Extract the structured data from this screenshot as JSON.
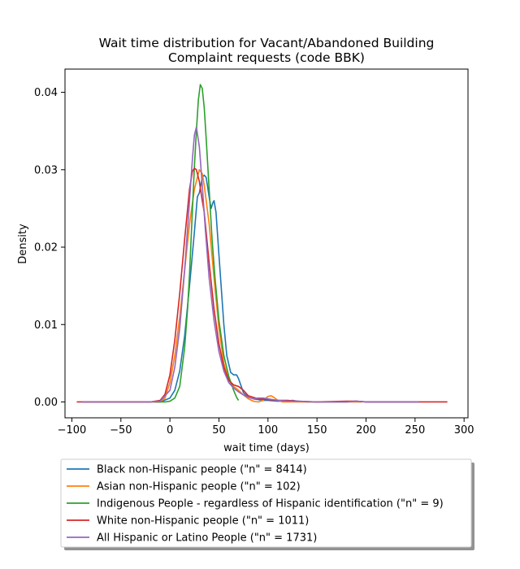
{
  "chart_data": {
    "type": "line",
    "title_lines": [
      "Wait time distribution  for Vacant/Abandoned Building",
      "Complaint requests (code BBK)"
    ],
    "xlabel": "wait time (days)",
    "ylabel": "Density",
    "xlim": [
      -107,
      304
    ],
    "ylim": [
      -0.00205,
      0.043
    ],
    "xticks": [
      -100,
      -50,
      0,
      50,
      100,
      150,
      200,
      250,
      300
    ],
    "xtick_labels": [
      "−100",
      "−50",
      "0",
      "50",
      "100",
      "150",
      "200",
      "250",
      "300"
    ],
    "yticks": [
      0.0,
      0.01,
      0.02,
      0.03,
      0.04
    ],
    "ytick_labels": [
      "0.00",
      "0.01",
      "0.02",
      "0.03",
      "0.04"
    ],
    "grid": false,
    "legend_position": "below-plot",
    "series": [
      {
        "name": "Black non-Hispanic people (\"n\" = 8414)",
        "color": "#1f77b4",
        "points": [
          [
            -90,
            0
          ],
          [
            -40,
            0
          ],
          [
            -10,
            0
          ],
          [
            0,
            0.0005
          ],
          [
            5,
            0.0015
          ],
          [
            10,
            0.004
          ],
          [
            15,
            0.0085
          ],
          [
            20,
            0.015
          ],
          [
            25,
            0.022
          ],
          [
            28,
            0.0265
          ],
          [
            30,
            0.027
          ],
          [
            33,
            0.029
          ],
          [
            35,
            0.0293
          ],
          [
            37,
            0.029
          ],
          [
            40,
            0.0265
          ],
          [
            42,
            0.025
          ],
          [
            44,
            0.0258
          ],
          [
            45,
            0.026
          ],
          [
            47,
            0.0245
          ],
          [
            50,
            0.019
          ],
          [
            55,
            0.01
          ],
          [
            58,
            0.006
          ],
          [
            62,
            0.0038
          ],
          [
            65,
            0.0035
          ],
          [
            68,
            0.0035
          ],
          [
            70,
            0.003
          ],
          [
            75,
            0.0012
          ],
          [
            80,
            0.0006
          ],
          [
            85,
            0.0004
          ],
          [
            90,
            0.0003
          ],
          [
            95,
            0.0002
          ],
          [
            100,
            0.0002
          ],
          [
            110,
            0.0001
          ],
          [
            120,
            0.0001
          ],
          [
            125,
            0.0002
          ],
          [
            130,
            0.0001
          ],
          [
            140,
            0
          ],
          [
            160,
            0
          ],
          [
            180,
            0
          ],
          [
            190,
            0.0001
          ],
          [
            200,
            0
          ],
          [
            250,
            0
          ],
          [
            254,
            0
          ]
        ]
      },
      {
        "name": "Asian non-Hispanic people (\"n\" = 102)",
        "color": "#ff7f0e",
        "points": [
          [
            -88,
            0
          ],
          [
            -40,
            0
          ],
          [
            -20,
            0
          ],
          [
            -10,
            0
          ],
          [
            -5,
            0.0005
          ],
          [
            0,
            0.0025
          ],
          [
            5,
            0.006
          ],
          [
            10,
            0.011
          ],
          [
            15,
            0.017
          ],
          [
            20,
            0.023
          ],
          [
            25,
            0.0275
          ],
          [
            30,
            0.03
          ],
          [
            33,
            0.0295
          ],
          [
            35,
            0.028
          ],
          [
            40,
            0.023
          ],
          [
            45,
            0.016
          ],
          [
            50,
            0.0095
          ],
          [
            55,
            0.005
          ],
          [
            60,
            0.0028
          ],
          [
            65,
            0.002
          ],
          [
            70,
            0.0015
          ],
          [
            75,
            0.0009
          ],
          [
            80,
            0.0004
          ],
          [
            85,
            0.0001
          ],
          [
            90,
            0
          ],
          [
            95,
            0.0002
          ],
          [
            100,
            0.0007
          ],
          [
            103,
            0.0008
          ],
          [
            106,
            0.0006
          ],
          [
            110,
            0.0002
          ],
          [
            115,
            0
          ],
          [
            120,
            0
          ],
          [
            130,
            0
          ],
          [
            140,
            0
          ],
          [
            150,
            0
          ],
          [
            180,
            0
          ],
          [
            190,
            0
          ],
          [
            195,
            0
          ],
          [
            196,
            0
          ]
        ]
      },
      {
        "name": "Indigenous People - regardless of Hispanic identification (\"n\" = 9)",
        "color": "#2ca02c",
        "points": [
          [
            -15,
            0
          ],
          [
            -10,
            0
          ],
          [
            -5,
            0
          ],
          [
            0,
            0.0001
          ],
          [
            5,
            0.0005
          ],
          [
            10,
            0.002
          ],
          [
            15,
            0.007
          ],
          [
            18,
            0.012
          ],
          [
            20,
            0.0165
          ],
          [
            23,
            0.025
          ],
          [
            25,
            0.0305
          ],
          [
            27,
            0.035
          ],
          [
            29,
            0.039
          ],
          [
            31,
            0.041
          ],
          [
            33,
            0.0405
          ],
          [
            35,
            0.038
          ],
          [
            37,
            0.034
          ],
          [
            40,
            0.0275
          ],
          [
            43,
            0.021
          ],
          [
            46,
            0.016
          ],
          [
            50,
            0.0105
          ],
          [
            55,
            0.006
          ],
          [
            60,
            0.0033
          ],
          [
            65,
            0.0015
          ],
          [
            68,
            0.0006
          ],
          [
            70,
            0.0002
          ]
        ]
      },
      {
        "name": "White non-Hispanic people (\"n\" = 1011)",
        "color": "#d62728",
        "points": [
          [
            -95,
            0
          ],
          [
            -60,
            0
          ],
          [
            -40,
            0
          ],
          [
            -20,
            0
          ],
          [
            -10,
            0.0002
          ],
          [
            -5,
            0.001
          ],
          [
            0,
            0.0035
          ],
          [
            5,
            0.008
          ],
          [
            10,
            0.014
          ],
          [
            15,
            0.021
          ],
          [
            20,
            0.0275
          ],
          [
            23,
            0.0298
          ],
          [
            25,
            0.0302
          ],
          [
            27,
            0.03
          ],
          [
            30,
            0.0285
          ],
          [
            33,
            0.026
          ],
          [
            35,
            0.0245
          ],
          [
            40,
            0.018
          ],
          [
            45,
            0.012
          ],
          [
            50,
            0.0075
          ],
          [
            55,
            0.0045
          ],
          [
            60,
            0.0028
          ],
          [
            65,
            0.0022
          ],
          [
            70,
            0.002
          ],
          [
            75,
            0.0015
          ],
          [
            80,
            0.0008
          ],
          [
            90,
            0.0004
          ],
          [
            100,
            0.0003
          ],
          [
            110,
            0.0002
          ],
          [
            120,
            0.0002
          ],
          [
            130,
            0.0001
          ],
          [
            150,
            0
          ],
          [
            180,
            0.0001
          ],
          [
            190,
            0.0001
          ],
          [
            200,
            0
          ],
          [
            250,
            0
          ],
          [
            283,
            0
          ]
        ]
      },
      {
        "name": "All Hispanic or Latino People (\"n\" = 1731)",
        "color": "#9467bd",
        "points": [
          [
            -90,
            0
          ],
          [
            -50,
            0
          ],
          [
            -20,
            0
          ],
          [
            -10,
            0.0001
          ],
          [
            0,
            0.0015
          ],
          [
            5,
            0.0045
          ],
          [
            10,
            0.0095
          ],
          [
            15,
            0.017
          ],
          [
            20,
            0.026
          ],
          [
            23,
            0.0315
          ],
          [
            25,
            0.0345
          ],
          [
            27,
            0.0355
          ],
          [
            30,
            0.033
          ],
          [
            33,
            0.028
          ],
          [
            36,
            0.0225
          ],
          [
            40,
            0.016
          ],
          [
            45,
            0.0105
          ],
          [
            50,
            0.0065
          ],
          [
            55,
            0.004
          ],
          [
            60,
            0.0025
          ],
          [
            65,
            0.0018
          ],
          [
            70,
            0.0013
          ],
          [
            75,
            0.0009
          ],
          [
            80,
            0.0006
          ],
          [
            85,
            0.0004
          ],
          [
            90,
            0.0005
          ],
          [
            95,
            0.0005
          ],
          [
            100,
            0.0004
          ],
          [
            110,
            0.0002
          ],
          [
            120,
            0.0001
          ],
          [
            130,
            0.0001
          ],
          [
            150,
            0
          ],
          [
            180,
            0
          ],
          [
            190,
            0.0001
          ],
          [
            200,
            0
          ],
          [
            250,
            0
          ],
          [
            254,
            0
          ]
        ]
      }
    ]
  }
}
